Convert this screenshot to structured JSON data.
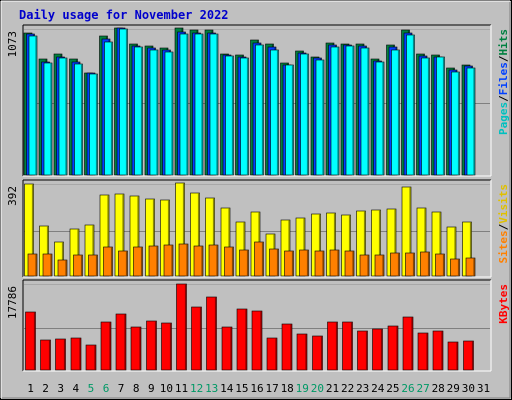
{
  "chart_data": {
    "type": "bar",
    "title": "Daily usage for November 2022",
    "x_labels": [
      "1",
      "2",
      "3",
      "4",
      "5",
      "6",
      "7",
      "8",
      "9",
      "10",
      "11",
      "12",
      "13",
      "14",
      "15",
      "16",
      "17",
      "18",
      "19",
      "20",
      "21",
      "22",
      "23",
      "24",
      "25",
      "26",
      "27",
      "28",
      "29",
      "30",
      "31"
    ],
    "weekend_days": [
      "5",
      "6",
      "12",
      "13",
      "19",
      "20",
      "26",
      "27"
    ],
    "colors": {
      "background": "#c0c0c0",
      "hits": "#008040",
      "files": "#0040ff",
      "pages": "#00ffff",
      "visits": "#ffff00",
      "sites": "#ff8000",
      "kbytes": "#ff0000",
      "title": "#0000cc",
      "weekend_label": "#009966"
    },
    "panels": [
      {
        "tick_label": "1073",
        "tick_value": 1073,
        "legend": [
          "Pages",
          "Files",
          "Hits"
        ],
        "series": [
          {
            "name": "Hits",
            "values": [
              1047,
              854,
              886,
              852,
              750,
              1018,
              1083,
              963,
              950,
              934,
              1078,
              1067,
              1062,
              891,
              879,
              991,
              964,
              822,
              910,
              869,
              971,
              960,
              964,
              853,
              959,
              1069,
              891,
              883,
              787,
              809
            ]
          },
          {
            "name": "Files",
            "values": [
              1039,
              829,
              867,
              831,
              748,
              1003,
              1080,
              950,
              935,
              916,
              1053,
              1047,
              1046,
              881,
              869,
              971,
              942,
              809,
              899,
              858,
              956,
              956,
              947,
              839,
              944,
              1046,
              877,
              870,
              773,
              799
            ]
          },
          {
            "name": "Pages",
            "values": [
              1023,
              822,
              859,
              813,
              740,
              981,
              1076,
              941,
              921,
              906,
              1036,
              1033,
              1039,
              875,
              861,
              959,
              920,
              806,
              886,
              846,
              939,
              948,
              935,
              831,
              920,
              1028,
              861,
              866,
              759,
              788
            ]
          }
        ]
      },
      {
        "tick_label": "392",
        "tick_value": 392,
        "legend": [
          "Sites",
          "Visits"
        ],
        "series": [
          {
            "name": "Visits",
            "values": [
              390,
              214,
              145,
              201,
              219,
              345,
              350,
              340,
              326,
              323,
              398,
              355,
              332,
              290,
              232,
              271,
              180,
              237,
              248,
              266,
              270,
              260,
              277,
              281,
              286,
              380,
              291,
              272,
              210,
              230
            ]
          },
          {
            "name": "Sites",
            "values": [
              95,
              92,
              68,
              90,
              90,
              124,
              107,
              122,
              126,
              133,
              135,
              127,
              130,
              124,
              109,
              145,
              113,
              106,
              109,
              107,
              109,
              105,
              88,
              90,
              100,
              98,
              102,
              95,
              73,
              75
            ]
          }
        ]
      },
      {
        "tick_label": "17786",
        "tick_value": 17786,
        "legend": [
          "KBytes"
        ],
        "series": [
          {
            "name": "KBytes",
            "values": [
              11900,
              6300,
              6400,
              6600,
              5200,
              10000,
              11500,
              8800,
              10200,
              9800,
              17700,
              13000,
              15000,
              8800,
              12600,
              12300,
              6600,
              9600,
              7400,
              7000,
              10000,
              10000,
              8000,
              8500,
              9200,
              10900,
              7700,
              8000,
              5800,
              6100
            ]
          }
        ]
      }
    ]
  }
}
